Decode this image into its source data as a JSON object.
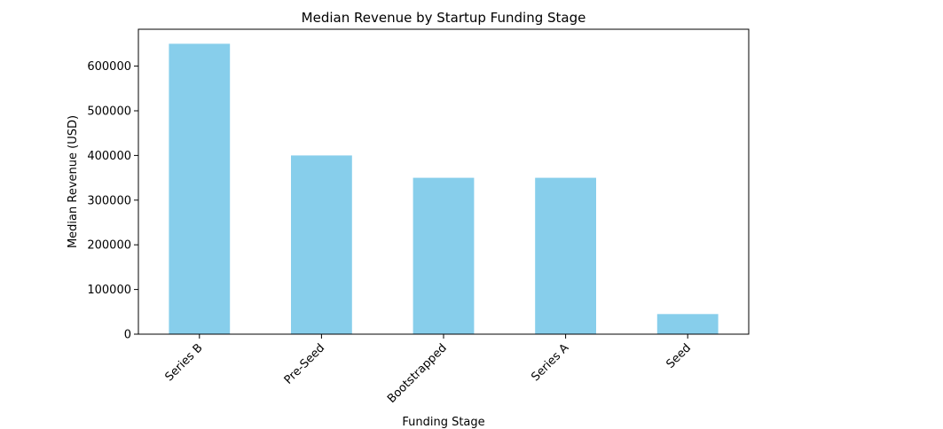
{
  "chart_data": {
    "type": "bar",
    "title": "Median Revenue by Startup Funding Stage",
    "xlabel": "Funding Stage",
    "ylabel": "Median Revenue (USD)",
    "categories": [
      "Series B",
      "Pre-Seed",
      "Bootstrapped",
      "Series A",
      "Seed"
    ],
    "values": [
      650000,
      400000,
      350000,
      350000,
      45000
    ],
    "ylim": [
      0,
      682500
    ],
    "yticks": [
      0,
      100000,
      200000,
      300000,
      400000,
      500000,
      600000
    ],
    "ytick_labels": [
      "0",
      "100000",
      "200000",
      "300000",
      "400000",
      "500000",
      "600000"
    ],
    "grid": false,
    "legend": "none",
    "bar_color": "#87CEEB",
    "xtick_rotation": 45
  }
}
